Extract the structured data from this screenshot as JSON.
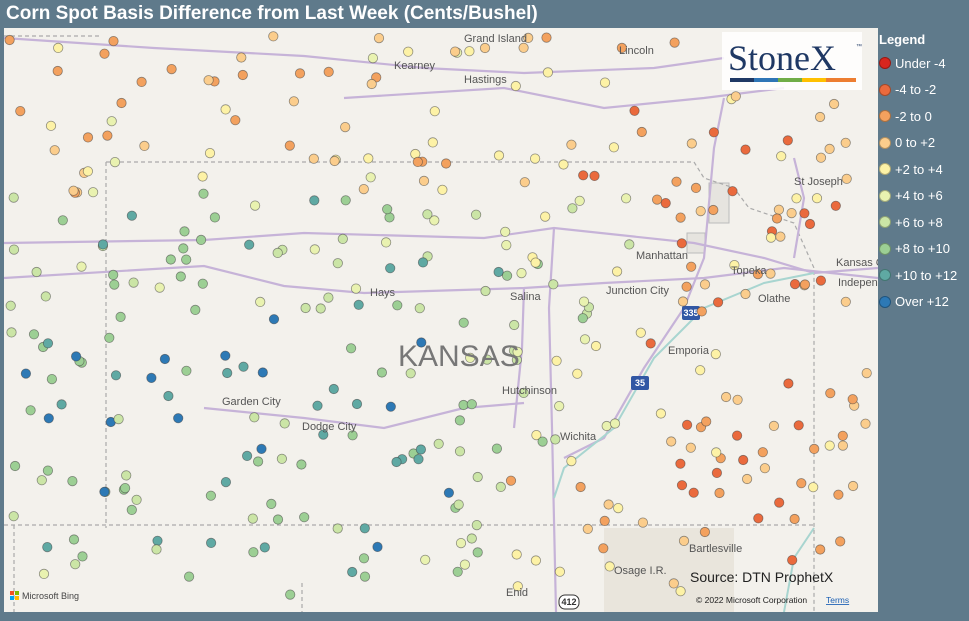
{
  "title": "Corn Spot Basis Difference from Last Week (Cents/Bushel)",
  "legend": {
    "title": "Legend",
    "items": [
      {
        "label": "Under -4",
        "color": "#d7261e"
      },
      {
        "label": "-4 to -2",
        "color": "#ea6a3d"
      },
      {
        "label": "-2 to 0",
        "color": "#f3a15e"
      },
      {
        "label": "0 to +2",
        "color": "#fbcd8c"
      },
      {
        "label": "+2 to +4",
        "color": "#fdf2a6"
      },
      {
        "label": "+4 to +6",
        "color": "#e9f2b0"
      },
      {
        "label": "+6 to +8",
        "color": "#cbe5a6"
      },
      {
        "label": "+8 to +10",
        "color": "#9ccf94"
      },
      {
        "label": "+10 to +12",
        "color": "#5fa9a3"
      },
      {
        "label": "Over +12",
        "color": "#2d79b5"
      }
    ]
  },
  "map": {
    "places": [
      "Grand Island",
      "Kearney",
      "Hastings",
      "Lincoln",
      "St Joseph",
      "Manhattan",
      "Topeka",
      "Kansas City",
      "Indepen",
      "Hays",
      "Salina",
      "Junction City",
      "Olathe",
      "KANSAS",
      "Emporia",
      "Garden City",
      "Dodge City",
      "Hutchinson",
      "Wichita",
      "Bartlesville",
      "Osage I.R.",
      "Enid"
    ],
    "shields": [
      "335",
      "35",
      "412"
    ]
  },
  "logo": {
    "text": "StoneX",
    "tm": "™"
  },
  "source": "Source: DTN ProphetX",
  "copyright": "© 2022 Microsoft Corporation",
  "terms": "Terms",
  "bing": "Microsoft Bing"
}
